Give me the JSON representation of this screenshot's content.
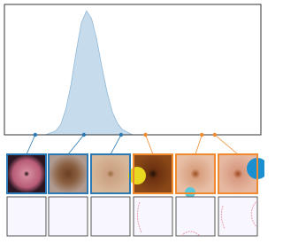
{
  "chart_data": {
    "type": "area",
    "x": [
      0,
      10,
      16,
      20,
      22,
      24,
      26,
      28,
      30,
      32,
      34,
      36,
      38,
      40,
      42,
      44,
      46,
      50,
      55,
      100
    ],
    "values": [
      0,
      0,
      0,
      0.03,
      0.08,
      0.2,
      0.39,
      0.64,
      0.86,
      0.95,
      0.89,
      0.73,
      0.52,
      0.33,
      0.18,
      0.09,
      0.04,
      0,
      0,
      0
    ],
    "color": "#c6dcec",
    "xlim": [
      0,
      100
    ],
    "ylim": [
      0,
      1
    ],
    "markers": {
      "x": [
        12,
        31,
        45.5,
        55,
        77,
        82
      ],
      "values": [
        0,
        0,
        0,
        0,
        0,
        0
      ],
      "colors": [
        "#2a78b4",
        "#2a78b4",
        "#2a78b4",
        "#ef8a2e",
        "#ef8a2e",
        "#ef8a2e"
      ]
    }
  }
}
